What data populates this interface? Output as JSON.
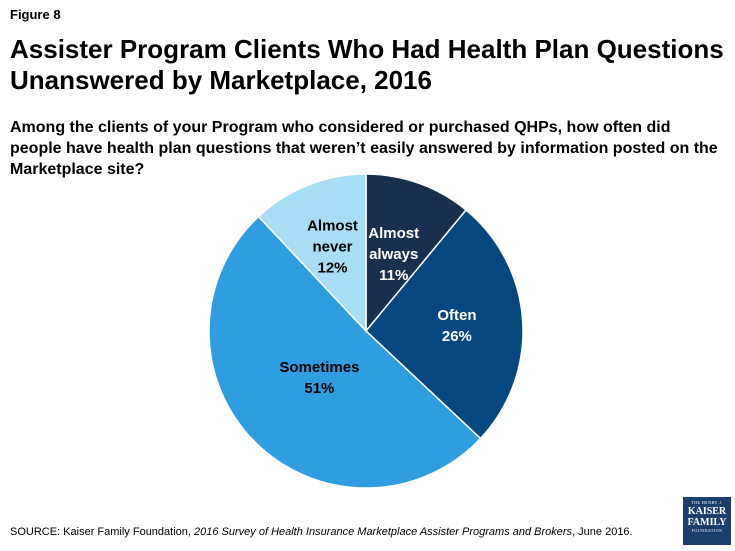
{
  "figure_label": "Figure 8",
  "source": {
    "prefix": "SOURCE: Kaiser Family Foundation, ",
    "italic": "2016 Survey of Health Insurance Marketplace Assister Programs and Brokers",
    "suffix": ", June 2016."
  },
  "logo": {
    "line1": "THE HENRY J.",
    "line2": "KAISER",
    "line3": "FAMILY",
    "line4": "FOUNDATION"
  },
  "chart_data": {
    "type": "pie",
    "title": "Assister Program Clients Who Had Health Plan Questions Unanswered by Marketplace, 2016",
    "subtitle": "Among the clients of your Program who considered or purchased QHPs, how often did people have health plan questions that weren’t easily answered by information posted on the Marketplace site?",
    "start_angle_deg": 0,
    "direction": "clockwise",
    "slices": [
      {
        "label_lines": [
          "Almost",
          "always"
        ],
        "value": 11,
        "value_label": "11%",
        "color": "#17304f",
        "text_color": "#ffffff"
      },
      {
        "label_lines": [
          "Often"
        ],
        "value": 26,
        "value_label": "26%",
        "color": "#07477f",
        "text_color": "#ffffff"
      },
      {
        "label_lines": [
          "Sometimes"
        ],
        "value": 51,
        "value_label": "51%",
        "color": "#2e9ee0",
        "text_color": "#000000"
      },
      {
        "label_lines": [
          "Almost",
          "never"
        ],
        "value": 12,
        "value_label": "12%",
        "color": "#a9dcf5",
        "text_color": "#000000"
      }
    ]
  }
}
